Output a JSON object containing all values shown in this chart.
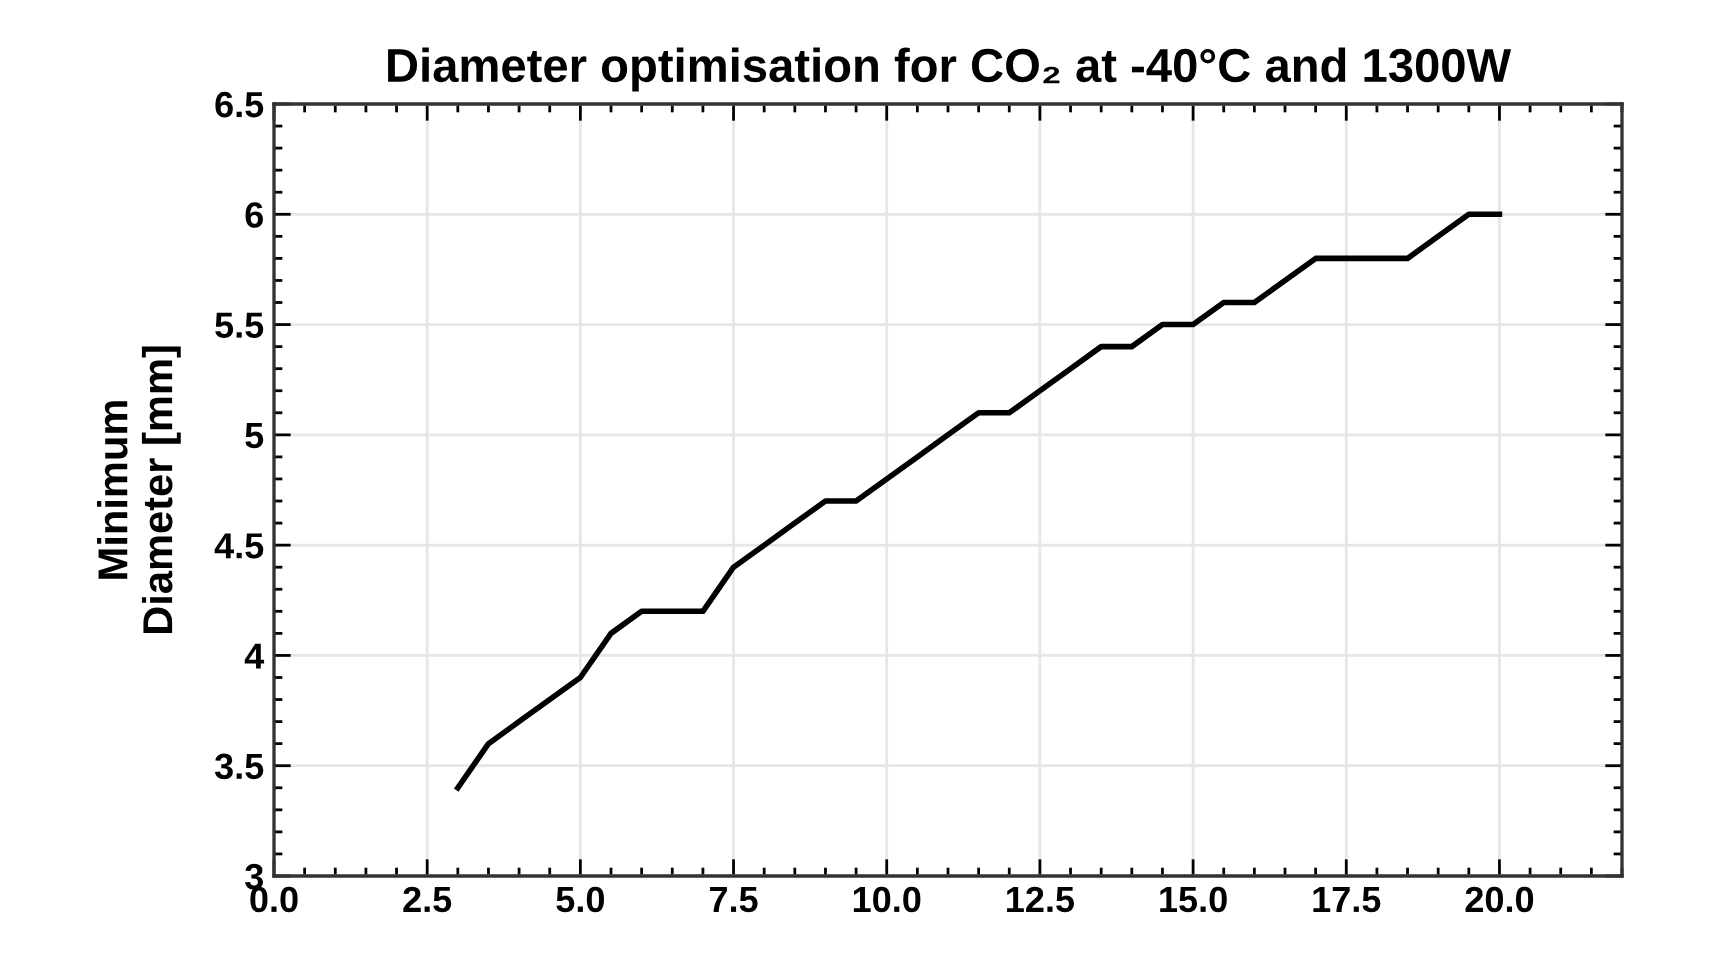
{
  "chart_data": {
    "type": "line",
    "title": "Diameter optimisation for CO₂ at -40°C and 1300W",
    "ylabel": "Minimum\nDiameter [mm]",
    "x": [
      3,
      3.5,
      4,
      4.5,
      5,
      5.5,
      6,
      6.5,
      7,
      7.5,
      8,
      8.5,
      9,
      9.5,
      10,
      10.5,
      11,
      11.5,
      12,
      12.5,
      13,
      13.5,
      14,
      14.5,
      15,
      15.5,
      16,
      16.5,
      17,
      17.5,
      18,
      18.5,
      19,
      19.5,
      20
    ],
    "series": [
      {
        "color": "#000000",
        "values": [
          3.4,
          3.6,
          3.7,
          3.8,
          3.9,
          4.1,
          4.2,
          4.2,
          4.2,
          4.4,
          4.5,
          4.6,
          4.7,
          4.7,
          4.8,
          4.9,
          5.0,
          5.1,
          5.1,
          5.2,
          5.3,
          5.4,
          5.4,
          5.5,
          5.5,
          5.6,
          5.6,
          5.7,
          5.8,
          5.8,
          5.8,
          5.8,
          5.9,
          6.0,
          6.0
        ]
      }
    ],
    "xlim": [
      0,
      22
    ],
    "xticks": [
      {
        "value": 0,
        "label": "0.0"
      },
      2.5,
      {
        "value": 5,
        "label": "5.0"
      },
      7.5,
      {
        "value": 10,
        "label": "10.0"
      },
      12.5,
      {
        "value": 15,
        "label": "15.0"
      },
      17.5,
      {
        "value": 20,
        "label": "20.0"
      }
    ],
    "ylim": [
      3,
      6.5
    ],
    "yticks": [
      3,
      3.5,
      4,
      4.5,
      5,
      5.5,
      6,
      6.5
    ],
    "grid": true,
    "marker": "none",
    "line_style": "solid"
  }
}
